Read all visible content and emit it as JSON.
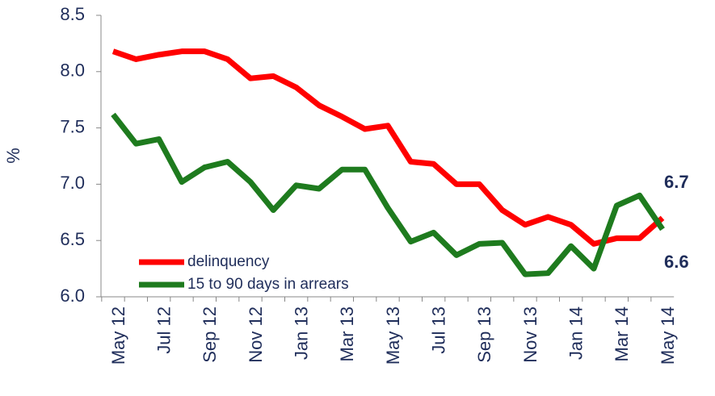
{
  "chart_data": {
    "type": "line",
    "y_label": "%",
    "categories": [
      "May 12",
      null,
      "Jul 12",
      null,
      "Sep 12",
      null,
      "Nov 12",
      null,
      "Jan 13",
      null,
      "Mar 13",
      null,
      "May 13",
      null,
      "Jul 13",
      null,
      "Sep 13",
      null,
      "Nov 13",
      null,
      "Jan 14",
      null,
      "Mar 14",
      null,
      "May 14"
    ],
    "series": [
      {
        "name": "delinquency",
        "color": "#ff0000",
        "values": [
          8.18,
          8.11,
          8.15,
          8.18,
          8.18,
          8.11,
          7.94,
          7.96,
          7.86,
          7.7,
          7.6,
          7.49,
          7.52,
          7.2,
          7.18,
          7.0,
          7.0,
          6.77,
          6.64,
          6.71,
          6.64,
          6.47,
          6.52,
          6.52,
          6.7
        ]
      },
      {
        "name": "15 to 90 days in arrears",
        "color": "#1e7b1e",
        "values": [
          7.62,
          7.36,
          7.4,
          7.02,
          7.15,
          7.2,
          7.02,
          6.77,
          6.99,
          6.96,
          7.13,
          7.13,
          6.79,
          6.49,
          6.57,
          6.37,
          6.47,
          6.48,
          6.2,
          6.21,
          6.45,
          6.25,
          6.81,
          6.9,
          6.6
        ]
      }
    ],
    "ylim": [
      6.0,
      8.5
    ],
    "yticks": [
      {
        "value": 6,
        "label": "6.0"
      },
      6.5,
      {
        "value": 7,
        "label": "7.0"
      },
      7.5,
      {
        "value": 8,
        "label": "8.0"
      },
      8.5
    ],
    "grid": false,
    "legend": "lower left"
  }
}
